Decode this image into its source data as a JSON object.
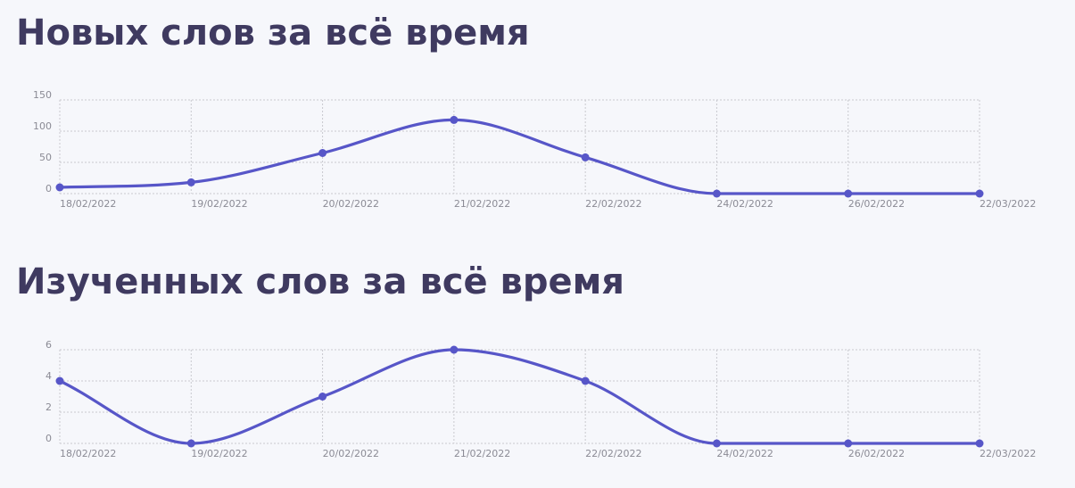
{
  "page": {
    "title_new": "Новых слов за всё время",
    "title_learned": "Изученных слов за всё время"
  },
  "chart_data": [
    {
      "type": "line",
      "title": "Новых слов за всё время",
      "xlabel": "",
      "ylabel": "",
      "categories": [
        "18/02/2022",
        "19/02/2022",
        "20/02/2022",
        "21/02/2022",
        "22/02/2022",
        "24/02/2022",
        "26/02/2022",
        "22/03/2022"
      ],
      "series": [
        {
          "values": [
            10,
            18,
            65,
            118,
            58,
            0,
            0,
            0
          ]
        }
      ],
      "yticks": [
        0,
        50,
        100,
        150
      ],
      "ylim": [
        0,
        150
      ],
      "grid": true,
      "legend": "none",
      "color": "#5756c8"
    },
    {
      "type": "line",
      "title": "Изученных слов за всё время",
      "xlabel": "",
      "ylabel": "",
      "categories": [
        "18/02/2022",
        "19/02/2022",
        "20/02/2022",
        "21/02/2022",
        "22/02/2022",
        "24/02/2022",
        "26/02/2022",
        "22/03/2022"
      ],
      "series": [
        {
          "values": [
            4,
            0,
            3,
            6,
            4,
            0,
            0,
            0
          ]
        }
      ],
      "yticks": [
        0,
        2,
        4,
        6
      ],
      "ylim": [
        0,
        6
      ],
      "grid": true,
      "legend": "none",
      "color": "#5756c8"
    }
  ]
}
